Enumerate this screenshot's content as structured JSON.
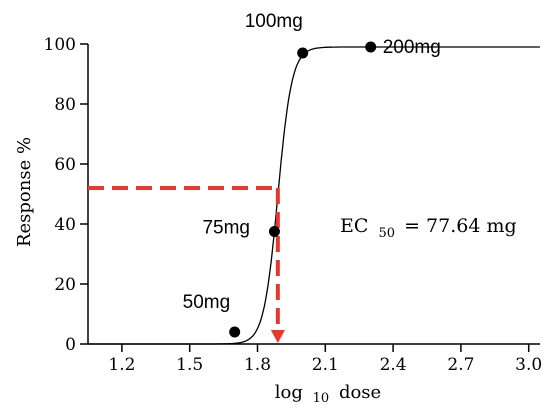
{
  "chart_data": {
    "type": "line",
    "title": "",
    "xlabel": {
      "pre": "log",
      "sub": "10",
      "post": "dose"
    },
    "ylabel": "Response %",
    "xlim": [
      1.05,
      3.05
    ],
    "ylim": [
      0,
      100
    ],
    "xticks": [
      "1.2",
      "1.5",
      "1.8",
      "2.1",
      "2.4",
      "2.7",
      "3.0"
    ],
    "yticks": [
      "0",
      "20",
      "40",
      "60",
      "80",
      "100"
    ],
    "grid": false,
    "points": [
      {
        "label": "50mg",
        "x": 1.699,
        "y": 4
      },
      {
        "label": "75mg",
        "x": 1.875,
        "y": 37.5
      },
      {
        "label": "100mg",
        "x": 2.0,
        "y": 97
      },
      {
        "label": "200mg",
        "x": 2.301,
        "y": 99
      }
    ],
    "fit_curve": {
      "top": 99,
      "bottom": 0,
      "log_ec50": 1.89,
      "hill_slope": 14
    },
    "ec50_guide": {
      "x": 1.89,
      "y": 52,
      "color": "#e8382b"
    },
    "annotation": {
      "main": "EC",
      "sub": "50",
      "value": "= 77.64 mg"
    }
  }
}
